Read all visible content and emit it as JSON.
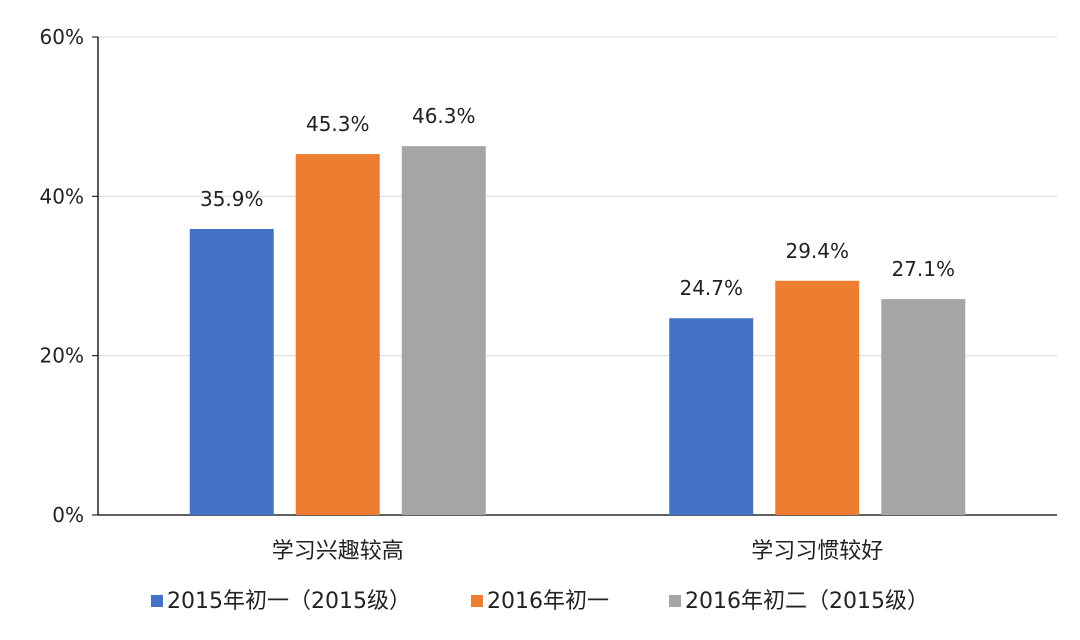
{
  "chart_data": {
    "type": "bar",
    "title": "",
    "xlabel": "",
    "ylabel": "",
    "ylim": [
      0,
      60
    ],
    "yticks": [
      0,
      20,
      40,
      60
    ],
    "ytick_labels": [
      "0%",
      "20%",
      "40%",
      "60%"
    ],
    "grid": true,
    "legend_position": "bottom",
    "categories": [
      "学习兴趣较高",
      "学习习惯较好"
    ],
    "series": [
      {
        "name": "2015年初一（2015级）",
        "color": "#4472C4",
        "values": [
          35.9,
          24.7
        ],
        "labels": [
          "35.9%",
          "24.7%"
        ]
      },
      {
        "name": "2016年初一",
        "color": "#ED7D31",
        "values": [
          45.3,
          29.4
        ],
        "labels": [
          "45.3%",
          "29.4%"
        ]
      },
      {
        "name": "2016年初二（2015级）",
        "color": "#A5A5A5",
        "values": [
          46.3,
          27.1
        ],
        "labels": [
          "46.3%",
          "27.1%"
        ]
      }
    ]
  }
}
